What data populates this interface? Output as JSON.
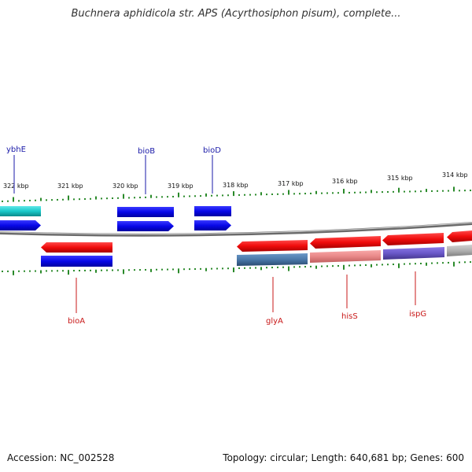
{
  "title": "Buchnera aphidicola str. APS (Acyrthosiphon pisum), complete...",
  "scale_labels": [
    {
      "label": "322 kbp"
    },
    {
      "label": "321 kbp"
    },
    {
      "label": "320 kbp"
    },
    {
      "label": "319 kbp"
    },
    {
      "label": "318 kbp"
    },
    {
      "label": "317 kbp"
    },
    {
      "label": "316 kbp"
    },
    {
      "label": "315 kbp"
    },
    {
      "label": "314 kbp"
    }
  ],
  "gene_labels": [
    {
      "name": "ybhE",
      "strand": "forward",
      "color": "#1a1aa8"
    },
    {
      "name": "bioB",
      "strand": "forward",
      "color": "#1a1aa8"
    },
    {
      "name": "bioD",
      "strand": "forward",
      "color": "#1a1aa8"
    },
    {
      "name": "bioA",
      "strand": "reverse",
      "color": "#c81818"
    },
    {
      "name": "glyA",
      "strand": "reverse",
      "color": "#c81818"
    },
    {
      "name": "hisS",
      "strand": "reverse",
      "color": "#c81818"
    },
    {
      "name": "ispG",
      "strand": "reverse",
      "color": "#c81818"
    }
  ],
  "colors": {
    "forward_gene": "#1010e0",
    "reverse_gene": "#e81010",
    "cyan_feature": "#18c8c8",
    "steelblue_feature": "#4a78a8",
    "pink_feature": "#e88888",
    "purple_feature": "#6a58c8",
    "gray_feature": "#b0b0b0",
    "backbone": "#808080",
    "tick": "#2a8a2a"
  },
  "footer": {
    "accession": "Accession: NC_002528",
    "topology": "Topology: circular; Length: 640,681 bp; Genes: 600"
  }
}
